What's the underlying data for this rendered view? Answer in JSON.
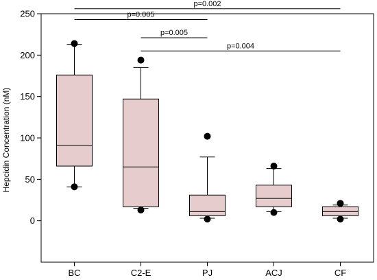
{
  "chart_data": {
    "type": "box",
    "ylabel": "Hepcidin Concentration (nM)",
    "xlabel": "",
    "ylim": [
      -50,
      250
    ],
    "yticks": [
      0,
      50,
      100,
      150,
      200,
      250
    ],
    "categories": [
      "BC",
      "C2-E",
      "PJ",
      "ACJ",
      "CF"
    ],
    "boxes": [
      {
        "category": "BC",
        "whisker_low": 41,
        "q1": 66,
        "median": 91,
        "q3": 176,
        "whisker_high": 213,
        "outliers": [
          214,
          41
        ]
      },
      {
        "category": "C2-E",
        "whisker_low": 15,
        "q1": 17,
        "median": 65,
        "q3": 147,
        "whisker_high": 185,
        "outliers": [
          194,
          13
        ]
      },
      {
        "category": "PJ",
        "whisker_low": 3,
        "q1": 6,
        "median": 11,
        "q3": 31,
        "whisker_high": 77,
        "outliers": [
          102,
          2
        ]
      },
      {
        "category": "ACJ",
        "whisker_low": 11,
        "q1": 17,
        "median": 27,
        "q3": 43,
        "whisker_high": 63,
        "outliers": [
          66,
          10
        ]
      },
      {
        "category": "CF",
        "whisker_low": 3,
        "q1": 6,
        "median": 11,
        "q3": 17,
        "whisker_high": 19,
        "outliers": [
          21,
          2
        ]
      }
    ],
    "significance": [
      {
        "from": "BC",
        "to": "CF",
        "label": "p=0.002",
        "y": 256
      },
      {
        "from": "BC",
        "to": "PJ",
        "label": "p=0.005",
        "y": 243
      },
      {
        "from": "C2-E",
        "to": "PJ",
        "label": "p=0.005",
        "y": 221
      },
      {
        "from": "C2-E",
        "to": "CF",
        "label": "p=0.004",
        "y": 205
      }
    ],
    "colors": {
      "box_fill": "#e6cccc",
      "stroke": "#000000"
    }
  }
}
